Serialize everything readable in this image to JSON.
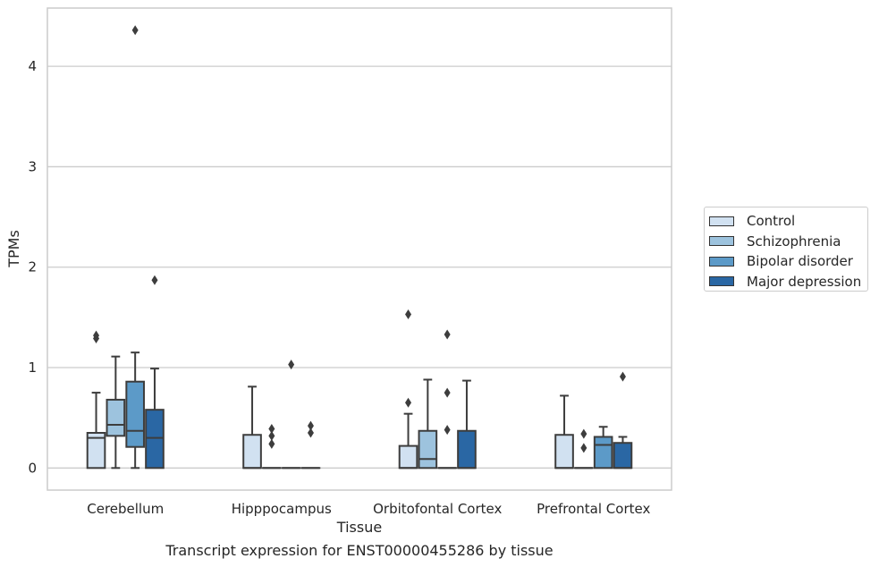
{
  "chart_data": {
    "type": "box",
    "xlabel": "Tissue",
    "ylabel": "TPMs",
    "caption": "Transcript expression for ENST00000455286 by tissue",
    "ylim": [
      -0.22,
      4.58
    ],
    "yticks": [
      0,
      1,
      2,
      3,
      4
    ],
    "grid": "horizontal",
    "legend_position": "right",
    "categories": [
      "Cerebellum",
      "Hipppocampus",
      "Orbitofontal Cortex",
      "Prefrontal Cortex"
    ],
    "series": [
      {
        "name": "Control",
        "color": "#d1e1f1",
        "boxes": [
          {
            "whislo": 0,
            "q1": 0,
            "med": 0.3,
            "q3": 0.35,
            "whishi": 0.75,
            "fliers": [
              1.29,
              1.32
            ]
          },
          {
            "whislo": 0,
            "q1": 0,
            "med": 0,
            "q3": 0.33,
            "whishi": 0.81,
            "fliers": []
          },
          {
            "whislo": 0,
            "q1": 0,
            "med": 0,
            "q3": 0.22,
            "whishi": 0.54,
            "fliers": [
              0.65,
              1.53
            ]
          },
          {
            "whislo": 0,
            "q1": 0,
            "med": 0,
            "q3": 0.33,
            "whishi": 0.72,
            "fliers": []
          }
        ]
      },
      {
        "name": "Schizophrenia",
        "color": "#9dc3de",
        "boxes": [
          {
            "whislo": 0,
            "q1": 0.32,
            "med": 0.43,
            "q3": 0.68,
            "whishi": 1.11,
            "fliers": []
          },
          {
            "whislo": 0,
            "q1": 0,
            "med": 0,
            "q3": 0,
            "whishi": 0,
            "fliers": [
              0.24,
              0.32,
              0.39
            ]
          },
          {
            "whislo": 0,
            "q1": 0,
            "med": 0.09,
            "q3": 0.37,
            "whishi": 0.88,
            "fliers": []
          },
          {
            "whislo": 0,
            "q1": 0,
            "med": 0,
            "q3": 0,
            "whishi": 0,
            "fliers": [
              0.2,
              0.34
            ]
          }
        ]
      },
      {
        "name": "Bipolar disorder",
        "color": "#5c9ac8",
        "boxes": [
          {
            "whislo": 0,
            "q1": 0.21,
            "med": 0.37,
            "q3": 0.86,
            "whishi": 1.15,
            "fliers": [
              4.36
            ]
          },
          {
            "whislo": 0,
            "q1": 0,
            "med": 0,
            "q3": 0,
            "whishi": 0,
            "fliers": [
              1.03
            ]
          },
          {
            "whislo": 0,
            "q1": 0,
            "med": 0,
            "q3": 0,
            "whishi": 0,
            "fliers": [
              0.38,
              0.75,
              1.33
            ]
          },
          {
            "whislo": 0,
            "q1": 0,
            "med": 0.23,
            "q3": 0.31,
            "whishi": 0.41,
            "fliers": []
          }
        ]
      },
      {
        "name": "Major depression",
        "color": "#2a67a4",
        "boxes": [
          {
            "whislo": 0,
            "q1": 0,
            "med": 0.3,
            "q3": 0.58,
            "whishi": 0.99,
            "fliers": [
              1.87
            ]
          },
          {
            "whislo": 0,
            "q1": 0,
            "med": 0,
            "q3": 0,
            "whishi": 0,
            "fliers": [
              0.35,
              0.42
            ]
          },
          {
            "whislo": 0,
            "q1": 0,
            "med": 0,
            "q3": 0.37,
            "whishi": 0.87,
            "fliers": []
          },
          {
            "whislo": 0,
            "q1": 0,
            "med": 0,
            "q3": 0.25,
            "whishi": 0.31,
            "fliers": [
              0.91
            ]
          }
        ]
      }
    ]
  }
}
